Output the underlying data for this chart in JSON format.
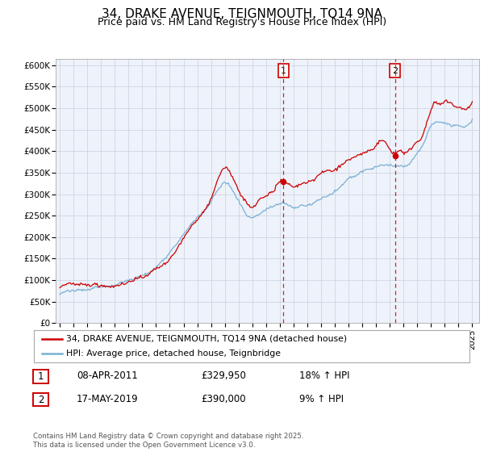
{
  "title": "34, DRAKE AVENUE, TEIGNMOUTH, TQ14 9NA",
  "subtitle": "Price paid vs. HM Land Registry's House Price Index (HPI)",
  "ylabel_ticks": [
    "£0",
    "£50K",
    "£100K",
    "£150K",
    "£200K",
    "£250K",
    "£300K",
    "£350K",
    "£400K",
    "£450K",
    "£500K",
    "£550K",
    "£600K"
  ],
  "ytick_values": [
    0,
    50000,
    100000,
    150000,
    200000,
    250000,
    300000,
    350000,
    400000,
    450000,
    500000,
    550000,
    600000
  ],
  "ylim": [
    0,
    615000
  ],
  "xlim_start": 1994.7,
  "xlim_end": 2025.5,
  "xtick_years": [
    1995,
    1996,
    1997,
    1998,
    1999,
    2000,
    2001,
    2002,
    2003,
    2004,
    2005,
    2006,
    2007,
    2008,
    2009,
    2010,
    2011,
    2012,
    2013,
    2014,
    2015,
    2016,
    2017,
    2018,
    2019,
    2020,
    2021,
    2022,
    2023,
    2024,
    2025
  ],
  "red_color": "#cc0000",
  "blue_color": "#7ab0d4",
  "vline_color": "#cc0000",
  "marker1_x": 2011.27,
  "marker1_y": 329950,
  "marker1_label": "1",
  "marker2_x": 2019.38,
  "marker2_y": 390000,
  "marker2_label": "2",
  "legend_entries": [
    "34, DRAKE AVENUE, TEIGNMOUTH, TQ14 9NA (detached house)",
    "HPI: Average price, detached house, Teignbridge"
  ],
  "table_rows": [
    {
      "num": "1",
      "date": "08-APR-2011",
      "price": "£329,950",
      "hpi": "18% ↑ HPI"
    },
    {
      "num": "2",
      "date": "17-MAY-2019",
      "price": "£390,000",
      "hpi": "9% ↑ HPI"
    }
  ],
  "footnote": "Contains HM Land Registry data © Crown copyright and database right 2025.\nThis data is licensed under the Open Government Licence v3.0.",
  "bg_color": "#ffffff",
  "plot_bg_color": "#eef2fa",
  "grid_color": "#c8d0e0"
}
